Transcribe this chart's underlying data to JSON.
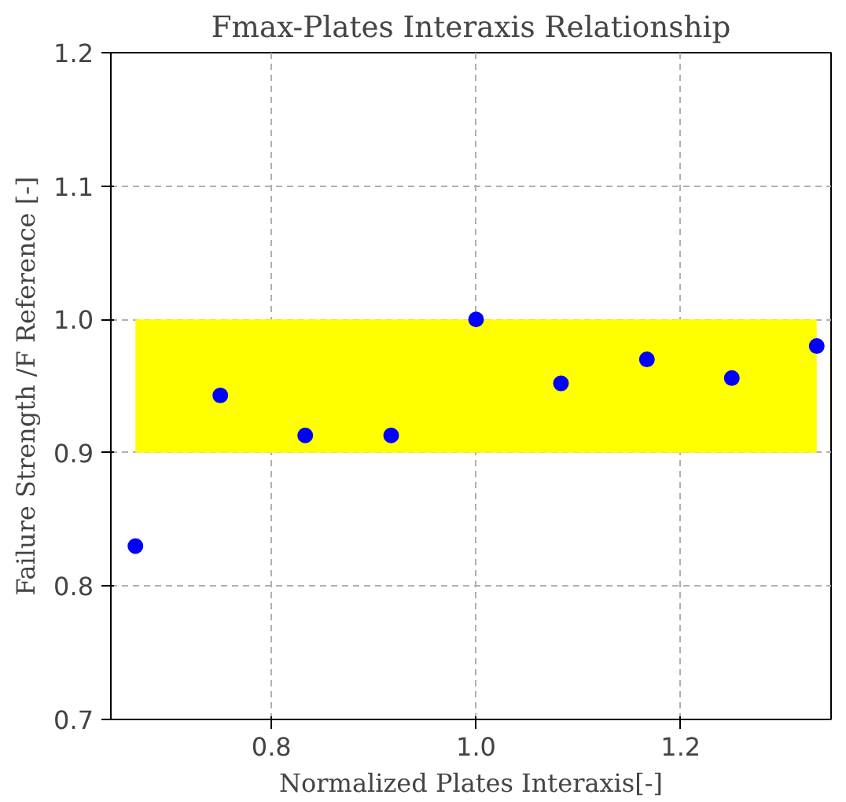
{
  "chart_data": {
    "type": "scatter",
    "title": "Fmax-Plates Interaxis Relationship",
    "xlabel": "Normalized Plates Interaxis[-]",
    "ylabel": "Failure Strength /F Reference [-]",
    "x": [
      0.667,
      0.75,
      0.833,
      0.917,
      1.0,
      1.083,
      1.167,
      1.25,
      1.333
    ],
    "series": [
      {
        "color": "#0000ff",
        "values": [
          0.83,
          0.943,
          0.913,
          0.913,
          1.0,
          0.952,
          0.97,
          0.956,
          0.98
        ]
      }
    ],
    "xlim": [
      0.643,
      1.347
    ],
    "ylim": [
      0.7,
      1.2
    ],
    "xticks": [
      {
        "value": 0.8,
        "label": "0.8"
      },
      {
        "value": 1.0,
        "label": "1.0"
      },
      {
        "value": 1.2,
        "label": "1.2"
      }
    ],
    "yticks": [
      {
        "value": 0.7,
        "label": "0.7"
      },
      {
        "value": 0.8,
        "label": "0.8"
      },
      {
        "value": 0.9,
        "label": "0.9"
      },
      {
        "value": 1.0,
        "label": "1.0"
      },
      {
        "value": 1.1,
        "label": "1.1"
      },
      {
        "value": 1.2,
        "label": "1.2"
      }
    ],
    "bands": [
      {
        "axis": "y",
        "from": 0.9,
        "to": 1.0,
        "color": "#ffff00"
      }
    ],
    "grid": true,
    "marker": "circle"
  }
}
